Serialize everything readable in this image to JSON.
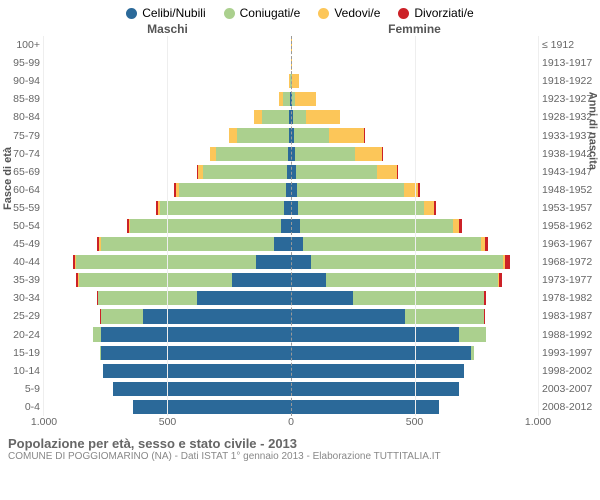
{
  "chart": {
    "type": "population-pyramid-stacked",
    "legend": [
      {
        "label": "Celibi/Nubili",
        "color": "#2b6999"
      },
      {
        "label": "Coniugati/e",
        "color": "#abd08e"
      },
      {
        "label": "Vedovi/e",
        "color": "#fcc659"
      },
      {
        "label": "Divorziati/e",
        "color": "#cc2127"
      }
    ],
    "header_male": "Maschi",
    "header_female": "Femmine",
    "ylabel_left": "Fasce di età",
    "ylabel_right": "Anni di nascita",
    "x_max": 1000,
    "x_ticks": [
      1000,
      500,
      0,
      500,
      1000
    ],
    "x_tick_labels": [
      "1.000",
      "500",
      "0",
      "500",
      "1.000"
    ],
    "background_color": "#ffffff",
    "grid_color": "#eeeeee",
    "centerline_color": "#999999",
    "title_fontsize": 13,
    "label_fontsize": 11,
    "tick_fontsize": 10.5,
    "age_bands": [
      {
        "age": "100+",
        "birth": "≤ 1912",
        "m": {
          "c": 0,
          "co": 0,
          "v": 0,
          "d": 0
        },
        "f": {
          "c": 0,
          "co": 0,
          "v": 1,
          "d": 0
        }
      },
      {
        "age": "95-99",
        "birth": "1913-1917",
        "m": {
          "c": 0,
          "co": 0,
          "v": 0,
          "d": 0
        },
        "f": {
          "c": 0,
          "co": 0,
          "v": 2,
          "d": 0
        }
      },
      {
        "age": "90-94",
        "birth": "1918-1922",
        "m": {
          "c": 1,
          "co": 3,
          "v": 5,
          "d": 0
        },
        "f": {
          "c": 2,
          "co": 2,
          "v": 30,
          "d": 0
        }
      },
      {
        "age": "85-89",
        "birth": "1923-1927",
        "m": {
          "c": 4,
          "co": 30,
          "v": 15,
          "d": 0
        },
        "f": {
          "c": 6,
          "co": 12,
          "v": 85,
          "d": 0
        }
      },
      {
        "age": "80-84",
        "birth": "1928-1932",
        "m": {
          "c": 8,
          "co": 110,
          "v": 30,
          "d": 0
        },
        "f": {
          "c": 10,
          "co": 50,
          "v": 140,
          "d": 0
        }
      },
      {
        "age": "75-79",
        "birth": "1933-1937",
        "m": {
          "c": 10,
          "co": 210,
          "v": 30,
          "d": 0
        },
        "f": {
          "c": 14,
          "co": 140,
          "v": 140,
          "d": 2
        }
      },
      {
        "age": "70-74",
        "birth": "1938-1942",
        "m": {
          "c": 14,
          "co": 290,
          "v": 25,
          "d": 0
        },
        "f": {
          "c": 18,
          "co": 240,
          "v": 110,
          "d": 3
        }
      },
      {
        "age": "65-69",
        "birth": "1943-1947",
        "m": {
          "c": 16,
          "co": 340,
          "v": 20,
          "d": 3
        },
        "f": {
          "c": 20,
          "co": 330,
          "v": 80,
          "d": 5
        }
      },
      {
        "age": "60-64",
        "birth": "1948-1952",
        "m": {
          "c": 22,
          "co": 430,
          "v": 15,
          "d": 5
        },
        "f": {
          "c": 26,
          "co": 430,
          "v": 60,
          "d": 6
        }
      },
      {
        "age": "55-59",
        "birth": "1953-1957",
        "m": {
          "c": 30,
          "co": 500,
          "v": 10,
          "d": 6
        },
        "f": {
          "c": 30,
          "co": 510,
          "v": 40,
          "d": 8
        }
      },
      {
        "age": "50-54",
        "birth": "1958-1962",
        "m": {
          "c": 40,
          "co": 610,
          "v": 8,
          "d": 8
        },
        "f": {
          "c": 36,
          "co": 620,
          "v": 25,
          "d": 10
        }
      },
      {
        "age": "45-49",
        "birth": "1963-1967",
        "m": {
          "c": 70,
          "co": 700,
          "v": 6,
          "d": 10
        },
        "f": {
          "c": 50,
          "co": 720,
          "v": 15,
          "d": 14
        }
      },
      {
        "age": "40-44",
        "birth": "1968-1972",
        "m": {
          "c": 140,
          "co": 730,
          "v": 4,
          "d": 10
        },
        "f": {
          "c": 80,
          "co": 780,
          "v": 8,
          "d": 18
        }
      },
      {
        "age": "35-39",
        "birth": "1973-1977",
        "m": {
          "c": 240,
          "co": 620,
          "v": 2,
          "d": 8
        },
        "f": {
          "c": 140,
          "co": 700,
          "v": 4,
          "d": 10
        }
      },
      {
        "age": "30-34",
        "birth": "1978-1982",
        "m": {
          "c": 380,
          "co": 400,
          "v": 0,
          "d": 5
        },
        "f": {
          "c": 250,
          "co": 530,
          "v": 2,
          "d": 6
        }
      },
      {
        "age": "25-29",
        "birth": "1983-1987",
        "m": {
          "c": 600,
          "co": 170,
          "v": 0,
          "d": 2
        },
        "f": {
          "c": 460,
          "co": 320,
          "v": 0,
          "d": 4
        }
      },
      {
        "age": "20-24",
        "birth": "1988-1992",
        "m": {
          "c": 770,
          "co": 30,
          "v": 0,
          "d": 0
        },
        "f": {
          "c": 680,
          "co": 110,
          "v": 0,
          "d": 0
        }
      },
      {
        "age": "15-19",
        "birth": "1993-1997",
        "m": {
          "c": 770,
          "co": 2,
          "v": 0,
          "d": 0
        },
        "f": {
          "c": 730,
          "co": 10,
          "v": 0,
          "d": 0
        }
      },
      {
        "age": "10-14",
        "birth": "1998-2002",
        "m": {
          "c": 760,
          "co": 0,
          "v": 0,
          "d": 0
        },
        "f": {
          "c": 700,
          "co": 0,
          "v": 0,
          "d": 0
        }
      },
      {
        "age": "5-9",
        "birth": "2003-2007",
        "m": {
          "c": 720,
          "co": 0,
          "v": 0,
          "d": 0
        },
        "f": {
          "c": 680,
          "co": 0,
          "v": 0,
          "d": 0
        }
      },
      {
        "age": "0-4",
        "birth": "2008-2012",
        "m": {
          "c": 640,
          "co": 0,
          "v": 0,
          "d": 0
        },
        "f": {
          "c": 600,
          "co": 0,
          "v": 0,
          "d": 0
        }
      }
    ]
  },
  "caption": {
    "title": "Popolazione per età, sesso e stato civile - 2013",
    "subtitle": "COMUNE DI POGGIOMARINO (NA) - Dati ISTAT 1° gennaio 2013 - Elaborazione TUTTITALIA.IT"
  }
}
